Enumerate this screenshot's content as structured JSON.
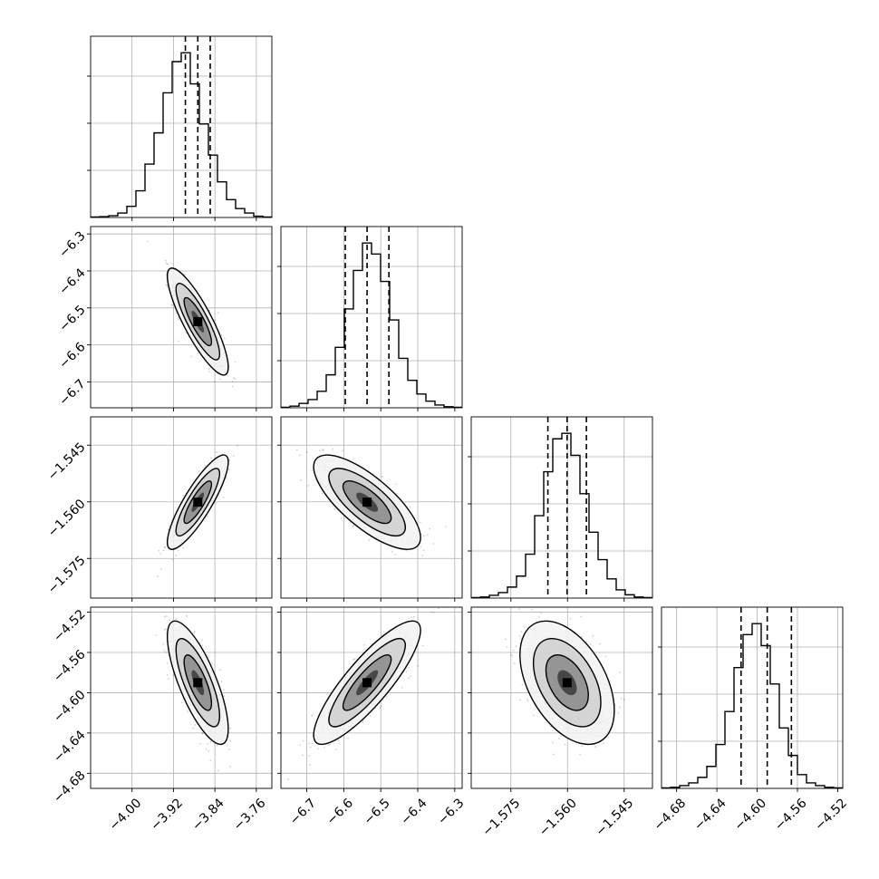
{
  "chart_data": {
    "type": "corner",
    "parameters": [
      {
        "range": [
          -4.08,
          -3.73
        ],
        "ticks": [
          -4.0,
          -3.92,
          -3.84,
          -3.76
        ],
        "tick_labels": [
          "−4.00",
          "−3.92",
          "−3.84",
          "−3.76"
        ],
        "quantiles": [
          -3.897,
          -3.873,
          -3.849
        ]
      },
      {
        "range": [
          -6.77,
          -6.28
        ],
        "ticks": [
          -6.7,
          -6.6,
          -6.5,
          -6.4,
          -6.3
        ],
        "tick_labels": [
          "−6.7",
          "−6.6",
          "−6.5",
          "−6.4",
          "−6.3"
        ],
        "quantiles": [
          -6.596,
          -6.537,
          -6.478
        ]
      },
      {
        "range": [
          -1.5855,
          -1.5375
        ],
        "ticks": [
          -1.575,
          -1.56,
          -1.545
        ],
        "tick_labels": [
          "−1.575",
          "−1.560",
          "−1.545"
        ],
        "quantiles": [
          -1.5652,
          -1.5601,
          -1.555
        ]
      },
      {
        "range": [
          -4.695,
          -4.515
        ],
        "ticks": [
          -4.68,
          -4.64,
          -4.6,
          -4.56,
          -4.52
        ],
        "tick_labels": [
          "−4.68",
          "−4.64",
          "−4.60",
          "−4.56",
          "−4.52"
        ],
        "quantiles": [
          -4.616,
          -4.59,
          -4.566
        ]
      }
    ],
    "histogram_counts": [
      [
        1,
        2,
        4,
        10,
        25,
        60,
        120,
        190,
        280,
        350,
        370,
        300,
        210,
        140,
        80,
        40,
        20,
        10,
        3,
        1
      ],
      [
        1,
        3,
        8,
        15,
        30,
        60,
        110,
        180,
        250,
        300,
        280,
        230,
        160,
        90,
        50,
        25,
        12,
        5,
        2,
        1
      ],
      [
        1,
        2,
        5,
        10,
        20,
        40,
        80,
        150,
        230,
        290,
        300,
        260,
        190,
        120,
        70,
        35,
        15,
        6,
        2,
        1
      ],
      [
        1,
        2,
        5,
        10,
        20,
        40,
        80,
        140,
        220,
        280,
        300,
        260,
        190,
        110,
        60,
        25,
        10,
        5,
        2,
        1
      ]
    ],
    "correlations": {
      "1-0": -0.85,
      "2-0": 0.85,
      "2-1": -0.75,
      "3-0": -0.75,
      "3-1": 0.85,
      "3-2": -0.45
    },
    "grid": true,
    "contour_levels": 3
  }
}
